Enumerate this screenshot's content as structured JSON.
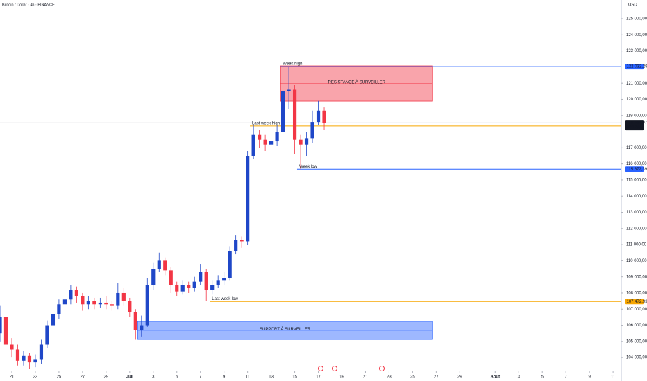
{
  "chart_data": {
    "type": "candlestick",
    "title": "Bitcoin / Dollar · 4h · BINANCE",
    "currency": "USD",
    "up_color": "#1f47c8",
    "down_color": "#f23645",
    "xlim": [
      20,
      72.7
    ],
    "ylim": [
      103190,
      126160
    ],
    "xticks": [
      {
        "value": 21,
        "label": "21"
      },
      {
        "value": 23,
        "label": "23"
      },
      {
        "value": 25,
        "label": "25"
      },
      {
        "value": 27,
        "label": "27"
      },
      {
        "value": 29,
        "label": "29"
      },
      {
        "value": 31,
        "label": "Juil"
      },
      {
        "value": 33,
        "label": "3"
      },
      {
        "value": 35,
        "label": "5"
      },
      {
        "value": 37,
        "label": "7"
      },
      {
        "value": 39,
        "label": "9"
      },
      {
        "value": 41,
        "label": "11"
      },
      {
        "value": 43,
        "label": "13"
      },
      {
        "value": 45,
        "label": "15"
      },
      {
        "value": 47,
        "label": "17"
      },
      {
        "value": 49,
        "label": "19"
      },
      {
        "value": 51,
        "label": "21"
      },
      {
        "value": 53,
        "label": "23"
      },
      {
        "value": 55,
        "label": "25"
      },
      {
        "value": 57,
        "label": "27"
      },
      {
        "value": 59,
        "label": "29"
      },
      {
        "value": 62,
        "label": "Août"
      },
      {
        "value": 64,
        "label": "3"
      },
      {
        "value": 66,
        "label": "5"
      },
      {
        "value": 68,
        "label": "7"
      },
      {
        "value": 70,
        "label": "9"
      },
      {
        "value": 72,
        "label": "11"
      }
    ],
    "yticks": [
      {
        "value": 104000,
        "label": "104 000,00"
      },
      {
        "value": 105000,
        "label": "105 000,00"
      },
      {
        "value": 106000,
        "label": "106 000,00"
      },
      {
        "value": 107000,
        "label": "107 000,00"
      },
      {
        "value": 108000,
        "label": "108 000,00"
      },
      {
        "value": 109000,
        "label": "109 000,00"
      },
      {
        "value": 110000,
        "label": "110 000,00"
      },
      {
        "value": 111000,
        "label": "111 000,00"
      },
      {
        "value": 112000,
        "label": "112 000,00"
      },
      {
        "value": 113000,
        "label": "113 000,00"
      },
      {
        "value": 114000,
        "label": "114 000,00"
      },
      {
        "value": 115000,
        "label": "115 000,00"
      },
      {
        "value": 116000,
        "label": "116 000,00"
      },
      {
        "value": 117000,
        "label": "117 000,00"
      },
      {
        "value": 119000,
        "label": "119 000,00"
      },
      {
        "value": 120000,
        "label": "120 000,00"
      },
      {
        "value": 121000,
        "label": "121 000,00"
      },
      {
        "value": 123000,
        "label": "123 000,00"
      },
      {
        "value": 124000,
        "label": "124 000,00"
      },
      {
        "value": 125000,
        "label": "125 000,00"
      }
    ],
    "x": [
      20,
      20.5,
      21,
      21.5,
      22,
      22.5,
      23,
      23.5,
      24,
      24.5,
      25,
      25.5,
      26,
      26.5,
      27,
      27.5,
      28,
      28.5,
      29,
      29.5,
      30,
      30.5,
      31,
      31.5,
      32,
      32.5,
      33,
      33.5,
      34,
      34.5,
      35,
      35.5,
      36,
      36.5,
      37,
      37.5,
      38,
      38.5,
      39,
      39.5,
      40,
      40.5,
      41,
      41.5,
      42,
      42.5,
      43,
      43.5,
      44,
      44.5,
      45,
      45.5,
      46,
      46.5,
      47,
      47.5
    ],
    "open": [
      105500,
      106500,
      104800,
      104500,
      103800,
      104100,
      103700,
      103900,
      104800,
      106000,
      106700,
      107300,
      107600,
      108200,
      107800,
      107300,
      107500,
      107300,
      107400,
      107300,
      107200,
      108000,
      107500,
      106800,
      105700,
      106000,
      108500,
      109500,
      110000,
      109400,
      108500,
      108100,
      108500,
      108300,
      108700,
      109300,
      108200,
      108500,
      108800,
      108900,
      110600,
      111300,
      111200,
      116500,
      117800,
      117500,
      117200,
      117400,
      118000,
      120500,
      120600,
      117500,
      117200,
      117600,
      118600,
      119300
    ],
    "high": [
      107200,
      106800,
      105200,
      104800,
      104400,
      104300,
      104200,
      105100,
      106300,
      107000,
      107600,
      108100,
      108500,
      108400,
      108000,
      107800,
      107700,
      107700,
      107800,
      107500,
      108600,
      108300,
      107700,
      107000,
      106600,
      108900,
      109900,
      110500,
      110200,
      109600,
      108700,
      108800,
      108700,
      109000,
      109800,
      109500,
      108800,
      109100,
      109300,
      110900,
      111600,
      111500,
      116800,
      118400,
      118100,
      117800,
      117800,
      118400,
      121500,
      122032.29,
      120900,
      117800,
      118000,
      119300,
      119900,
      119500
    ],
    "low": [
      105000,
      104400,
      104000,
      103500,
      103500,
      103300,
      103400,
      103600,
      104600,
      105700,
      106400,
      107000,
      107300,
      107400,
      106900,
      107000,
      107000,
      107100,
      107000,
      106900,
      107000,
      107200,
      106500,
      105100,
      105300,
      105900,
      108200,
      109300,
      109100,
      108000,
      107800,
      107900,
      108000,
      108100,
      108500,
      107500,
      107900,
      108300,
      108500,
      108800,
      110400,
      110800,
      111000,
      116300,
      117000,
      116800,
      116900,
      117100,
      117800,
      119400,
      116600,
      115672.39,
      116500,
      117300,
      118400,
      118100
    ],
    "close": [
      106500,
      104800,
      104500,
      103800,
      104100,
      103700,
      103900,
      104800,
      106000,
      106700,
      107300,
      107600,
      108200,
      107800,
      107300,
      107500,
      107300,
      107400,
      107300,
      107200,
      108000,
      107500,
      106800,
      105700,
      106000,
      108500,
      109500,
      110000,
      109400,
      108500,
      108100,
      108500,
      108300,
      108700,
      109300,
      108200,
      108500,
      108800,
      108900,
      110600,
      111300,
      111200,
      116500,
      117800,
      117500,
      117200,
      117400,
      118000,
      120500,
      120600,
      117500,
      117200,
      117600,
      118600,
      119300,
      118554.07
    ],
    "last_price": {
      "value": 118554.07,
      "label": "118 554,07",
      "countdown": "02:12:55"
    },
    "zones": [
      {
        "label": "RÉSISTANCE À SURVEILLER",
        "top": 122080,
        "bottom": 119890,
        "x_start": 43.8,
        "x_end": 56.7,
        "color": "#f23645"
      },
      {
        "label": "SUPPORT À SURVEILLER",
        "top": 106240,
        "bottom": 105120,
        "x_start": 31.67,
        "x_end": 56.7,
        "color": "#2962ff"
      }
    ],
    "levels": [
      {
        "label": "Week high",
        "value": 122032.29,
        "value_label": "122 032,29",
        "x_start": 43.8,
        "color": "#2962ff"
      },
      {
        "label": "Last week high",
        "value": 118350,
        "x_start": 41.2,
        "color": "#f7a600"
      },
      {
        "label": "Week low",
        "value": 115672.39,
        "value_label": "115 672,39",
        "x_start": 45.2,
        "color": "#2962ff"
      },
      {
        "label": "Last week low",
        "value": 107472.93,
        "value_label": "107 472,93",
        "x_start": 37.8,
        "color": "#f7a600"
      }
    ]
  }
}
